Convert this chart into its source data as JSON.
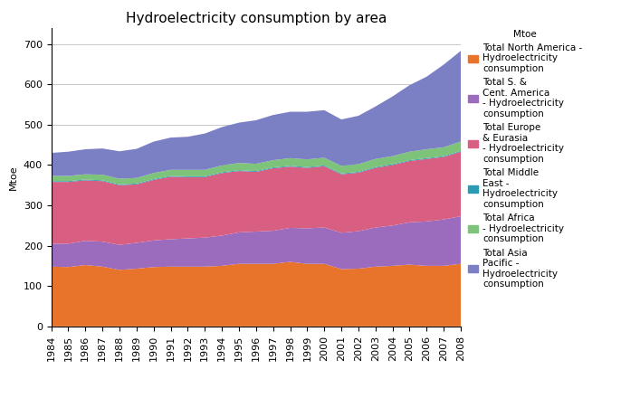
{
  "title": "Hydroelectricity consumption by area",
  "ylabel": "Mtoe",
  "xlabel": "",
  "ylim": [
    0,
    740
  ],
  "years": [
    1984,
    1985,
    1986,
    1987,
    1988,
    1989,
    1990,
    1991,
    1992,
    1993,
    1994,
    1995,
    1996,
    1997,
    1998,
    1999,
    2000,
    2001,
    2002,
    2003,
    2004,
    2005,
    2006,
    2007,
    2008
  ],
  "series": {
    "Total North America": [
      148,
      147,
      152,
      148,
      140,
      143,
      147,
      148,
      148,
      148,
      150,
      155,
      155,
      155,
      160,
      155,
      155,
      142,
      143,
      148,
      150,
      153,
      150,
      150,
      155
    ],
    "Total S. & Cent. America": [
      57,
      58,
      60,
      62,
      62,
      64,
      66,
      68,
      70,
      72,
      75,
      78,
      80,
      82,
      84,
      88,
      90,
      90,
      93,
      97,
      100,
      105,
      110,
      115,
      118
    ],
    "Total Europe & Eurasia": [
      153,
      153,
      150,
      150,
      148,
      145,
      150,
      155,
      152,
      150,
      155,
      152,
      148,
      155,
      152,
      150,
      152,
      145,
      145,
      148,
      150,
      152,
      155,
      155,
      160
    ],
    "Total Middle East": [
      2,
      2,
      2,
      2,
      2,
      2,
      2,
      2,
      2,
      2,
      2,
      2,
      2,
      2,
      2,
      2,
      2,
      2,
      2,
      2,
      2,
      2,
      2,
      2,
      2
    ],
    "Total Africa": [
      13,
      13,
      13,
      14,
      14,
      14,
      15,
      15,
      16,
      16,
      17,
      18,
      18,
      18,
      19,
      19,
      19,
      19,
      19,
      20,
      20,
      21,
      22,
      22,
      23
    ],
    "Total Asia Pacific": [
      57,
      60,
      62,
      65,
      68,
      72,
      78,
      80,
      82,
      90,
      95,
      100,
      108,
      112,
      115,
      118,
      118,
      115,
      120,
      130,
      148,
      165,
      180,
      205,
      225
    ]
  },
  "colors": {
    "Total North America": "#E8732A",
    "Total S. & Cent. America": "#9B6BBE",
    "Total Europe & Eurasia": "#D95F82",
    "Total Middle East": "#2A9BB5",
    "Total Africa": "#7DC47A",
    "Total Asia Pacific": "#7B7FC4"
  },
  "stack_order": [
    "Total North America",
    "Total S. & Cent. America",
    "Total Europe & Eurasia",
    "Total Middle East",
    "Total Africa",
    "Total Asia Pacific"
  ],
  "legend_labels": {
    "Total North America": "Total North America -\nHydroelectricity\nconsumption",
    "Total S. & Cent. America": "Total S. &\nCent. America\n- Hydroelectricity\nconsumption",
    "Total Europe & Eurasia": "Total Europe\n& Eurasia\n- Hydroelectricity\nconsumption",
    "Total Middle East": "Total Middle\nEast -\nHydroelectricity\nconsumption",
    "Total Africa": "Total Africa\n- Hydroelectricity\nconsumption",
    "Total Asia Pacific": "Total Asia\nPacific -\nHydroelectricity\nconsumption"
  },
  "legend_title": "Mtoe",
  "background_color": "#ffffff",
  "grid_color": "#c0c0c0",
  "title_fontsize": 11,
  "axis_fontsize": 8,
  "legend_fontsize": 7.5
}
